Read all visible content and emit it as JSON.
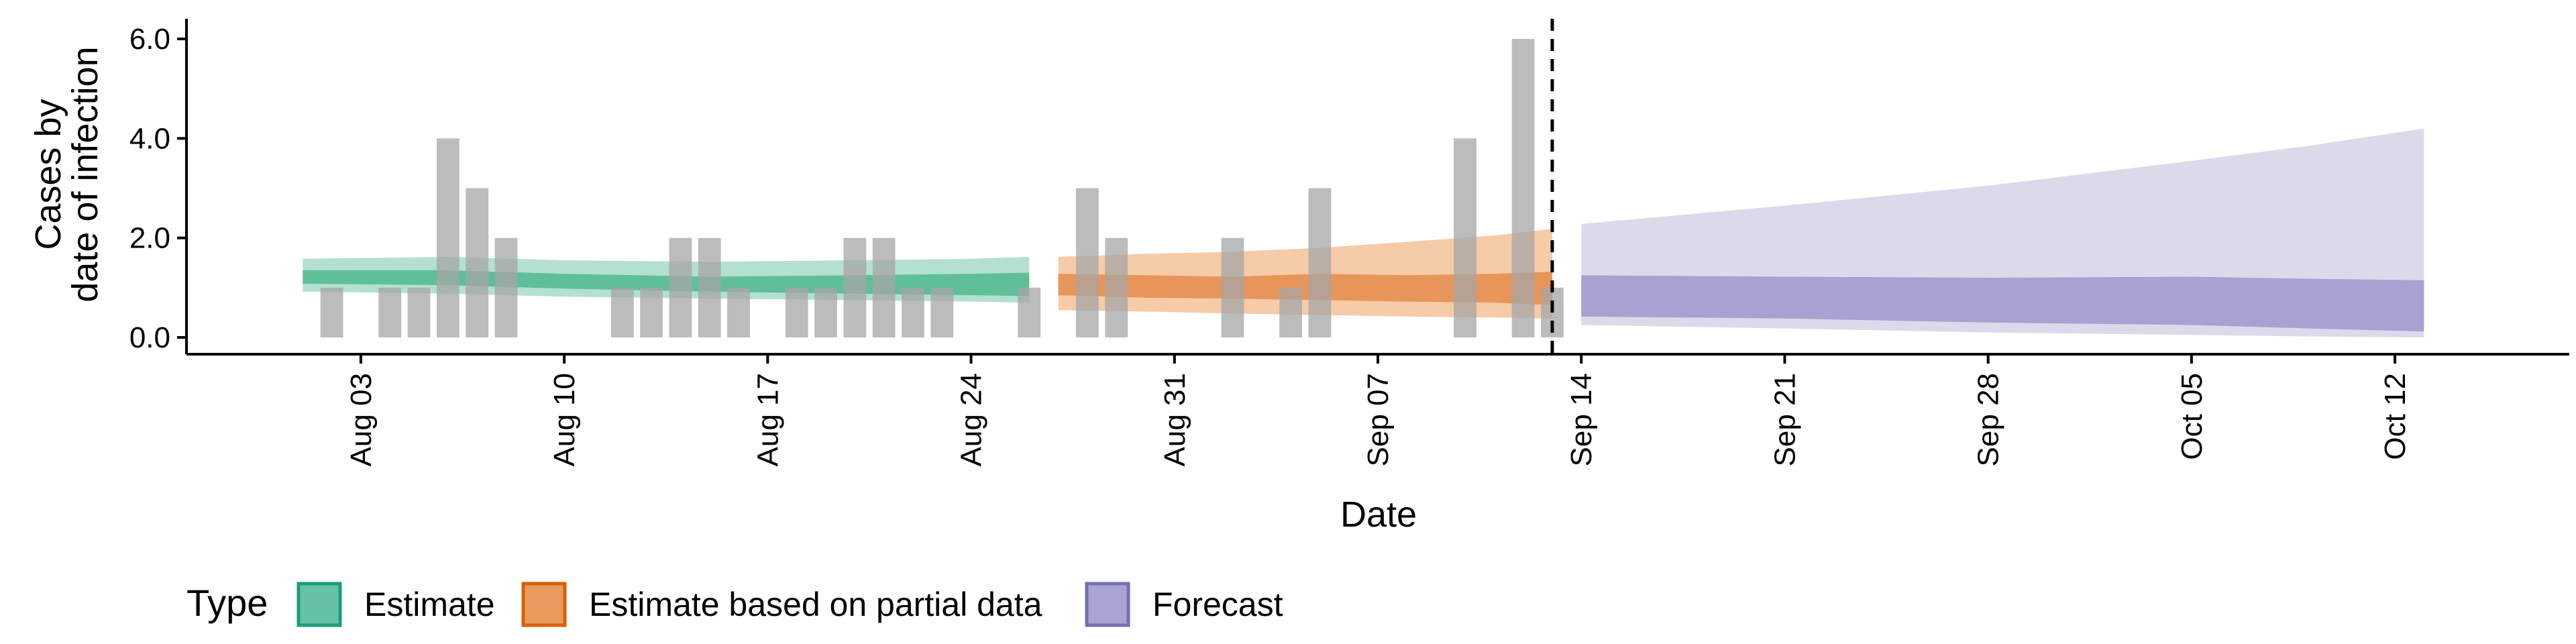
{
  "chart_data": {
    "type": "bar",
    "xlabel": "Date",
    "ylabel_lines": [
      "Cases by",
      "date of infection"
    ],
    "ylim": [
      0,
      6.2
    ],
    "y_ticks": [
      0,
      2,
      4,
      6
    ],
    "y_tick_labels": [
      "0.0",
      "2.0",
      "4.0",
      "6.0"
    ],
    "date_range": [
      "2020-07-28",
      "2020-10-18"
    ],
    "x_ticks": [
      {
        "date": "2020-08-03",
        "label": "Aug 03"
      },
      {
        "date": "2020-08-10",
        "label": "Aug 10"
      },
      {
        "date": "2020-08-17",
        "label": "Aug 17"
      },
      {
        "date": "2020-08-24",
        "label": "Aug 24"
      },
      {
        "date": "2020-08-31",
        "label": "Aug 31"
      },
      {
        "date": "2020-09-07",
        "label": "Sep 07"
      },
      {
        "date": "2020-09-14",
        "label": "Sep 14"
      },
      {
        "date": "2020-09-21",
        "label": "Sep 21"
      },
      {
        "date": "2020-09-28",
        "label": "Sep 28"
      },
      {
        "date": "2020-10-05",
        "label": "Oct 05"
      },
      {
        "date": "2020-10-12",
        "label": "Oct 12"
      }
    ],
    "grid": false,
    "vline_date": "2020-09-13",
    "bars": [
      {
        "date": "2020-08-02",
        "value": 1
      },
      {
        "date": "2020-08-04",
        "value": 1
      },
      {
        "date": "2020-08-05",
        "value": 1
      },
      {
        "date": "2020-08-06",
        "value": 4
      },
      {
        "date": "2020-08-07",
        "value": 3
      },
      {
        "date": "2020-08-08",
        "value": 2
      },
      {
        "date": "2020-08-12",
        "value": 1
      },
      {
        "date": "2020-08-13",
        "value": 1
      },
      {
        "date": "2020-08-14",
        "value": 2
      },
      {
        "date": "2020-08-15",
        "value": 2
      },
      {
        "date": "2020-08-16",
        "value": 1
      },
      {
        "date": "2020-08-18",
        "value": 1
      },
      {
        "date": "2020-08-19",
        "value": 1
      },
      {
        "date": "2020-08-20",
        "value": 2
      },
      {
        "date": "2020-08-21",
        "value": 2
      },
      {
        "date": "2020-08-22",
        "value": 1
      },
      {
        "date": "2020-08-23",
        "value": 1
      },
      {
        "date": "2020-08-26",
        "value": 1
      },
      {
        "date": "2020-08-28",
        "value": 3
      },
      {
        "date": "2020-08-29",
        "value": 2
      },
      {
        "date": "2020-09-02",
        "value": 2
      },
      {
        "date": "2020-09-04",
        "value": 1
      },
      {
        "date": "2020-09-05",
        "value": 3
      },
      {
        "date": "2020-09-10",
        "value": 4
      },
      {
        "date": "2020-09-12",
        "value": 6
      },
      {
        "date": "2020-09-13",
        "value": 1
      }
    ],
    "series": [
      {
        "name": "Estimate",
        "color_outer": "#b3e0d1",
        "color_inner": "#5fbf99",
        "band_dates": [
          "2020-08-01",
          "2020-08-06",
          "2020-08-10",
          "2020-08-15",
          "2020-08-20",
          "2020-08-24",
          "2020-08-26"
        ],
        "outer_upper": [
          1.58,
          1.62,
          1.55,
          1.52,
          1.55,
          1.58,
          1.62
        ],
        "outer_lower": [
          0.92,
          0.88,
          0.82,
          0.78,
          0.75,
          0.72,
          0.7
        ],
        "inner_upper": [
          1.35,
          1.35,
          1.28,
          1.22,
          1.25,
          1.28,
          1.3
        ],
        "inner_lower": [
          1.08,
          1.05,
          0.98,
          0.92,
          0.88,
          0.85,
          0.83
        ]
      },
      {
        "name": "Estimate based on partial data",
        "color_outer": "#f5cba8",
        "color_inner": "#e8955a",
        "band_dates": [
          "2020-08-27",
          "2020-08-30",
          "2020-09-02",
          "2020-09-05",
          "2020-09-08",
          "2020-09-11",
          "2020-09-13"
        ],
        "outer_upper": [
          1.62,
          1.68,
          1.72,
          1.8,
          1.92,
          2.05,
          2.18
        ],
        "outer_lower": [
          0.55,
          0.52,
          0.48,
          0.45,
          0.42,
          0.4,
          0.38
        ],
        "inner_upper": [
          1.28,
          1.25,
          1.22,
          1.28,
          1.25,
          1.28,
          1.32
        ],
        "inner_lower": [
          0.85,
          0.8,
          0.78,
          0.75,
          0.72,
          0.7,
          0.65
        ]
      },
      {
        "name": "Forecast",
        "color_outer": "#dcdaea",
        "color_inner": "#a7a2d1",
        "band_dates": [
          "2020-09-14",
          "2020-09-21",
          "2020-09-28",
          "2020-10-05",
          "2020-10-09",
          "2020-10-13"
        ],
        "outer_upper": [
          2.28,
          2.65,
          3.05,
          3.55,
          3.85,
          4.2
        ],
        "outer_lower": [
          0.25,
          0.18,
          0.1,
          0.05,
          0.02,
          0.0
        ],
        "inner_upper": [
          1.25,
          1.22,
          1.2,
          1.22,
          1.18,
          1.15
        ],
        "inner_lower": [
          0.42,
          0.38,
          0.3,
          0.25,
          0.18,
          0.12
        ]
      }
    ],
    "legend": {
      "title": "Type",
      "position": "bottom-left",
      "items": [
        {
          "label": "Estimate",
          "fill": "#66c2a5",
          "stroke": "#1b9e77"
        },
        {
          "label": "Estimate based on partial data",
          "fill": "#ea9a5d",
          "stroke": "#d95f02"
        },
        {
          "label": "Forecast",
          "fill": "#a9a4d4",
          "stroke": "#7570b3"
        }
      ]
    }
  }
}
